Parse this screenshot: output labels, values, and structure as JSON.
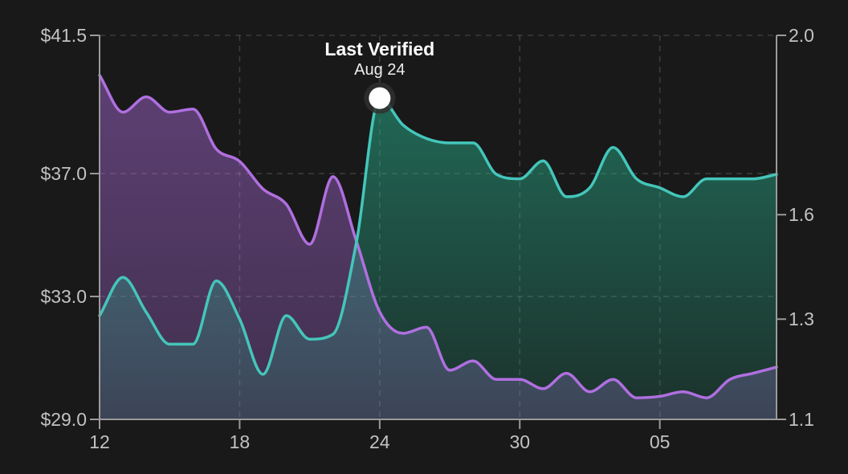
{
  "colors": {
    "background": "#191919",
    "axis": "#9b9b9b",
    "grid": "rgba(255,255,255,0.15)",
    "tick_label": "#c2c2c2",
    "annotation_text": "#ffffff",
    "marker_fill": "#ffffff",
    "marker_ring": "rgba(48,48,48,0.85)"
  },
  "annotation": {
    "title": "Last Verified",
    "subtitle": "Aug 24"
  },
  "chart_data": {
    "type": "area",
    "subtype": "dual-axis-smoothed-area",
    "title": "",
    "grid": "dashed",
    "legend": "none",
    "dates": [
      "Aug 12",
      "Aug 13",
      "Aug 14",
      "Aug 15",
      "Aug 16",
      "Aug 17",
      "Aug 18",
      "Aug 19",
      "Aug 20",
      "Aug 21",
      "Aug 22",
      "Aug 23",
      "Aug 24",
      "Aug 25",
      "Aug 26",
      "Aug 27",
      "Aug 28",
      "Aug 29",
      "Aug 30",
      "Aug 31",
      "Sep 01",
      "Sep 02",
      "Sep 03",
      "Sep 04",
      "Sep 05",
      "Sep 06",
      "Sep 07",
      "Sep 08",
      "Sep 09",
      "Sep 10"
    ],
    "x_ticks": [
      {
        "label": "12",
        "index": 0
      },
      {
        "label": "18",
        "index": 6
      },
      {
        "label": "24",
        "index": 12
      },
      {
        "label": "30",
        "index": 18
      },
      {
        "label": "05",
        "index": 24
      }
    ],
    "left_axis": {
      "unit": "$",
      "range": [
        29.0,
        41.5
      ],
      "scale": "linear",
      "ticks": [
        {
          "label": "$41.5",
          "value": 41.5
        },
        {
          "label": "$37.0",
          "value": 37.0
        },
        {
          "label": "$33.0",
          "value": 33.0
        },
        {
          "label": "$29.0",
          "value": 29.0
        }
      ]
    },
    "right_axis": {
      "unit": "",
      "range": [
        1.1,
        2.0
      ],
      "scale": "piecewise",
      "ticks": [
        {
          "label": "2.0",
          "value": 2.0,
          "pos": 0.0
        },
        {
          "label": "1.6",
          "value": 1.6,
          "pos": 0.467
        },
        {
          "label": "1.3",
          "value": 1.3,
          "pos": 0.739
        },
        {
          "label": "1.1",
          "value": 1.1,
          "pos": 1.0
        }
      ]
    },
    "series": [
      {
        "name": "price-usd",
        "axis": "left",
        "line_color": "#b06fe0",
        "fill_color": "#af6ee0",
        "fill_alpha_top": 0.46,
        "fill_alpha_bottom": 0.26,
        "values": [
          40.2,
          39.0,
          39.5,
          39.0,
          39.1,
          37.8,
          37.4,
          36.5,
          36.0,
          34.7,
          36.9,
          34.8,
          32.5,
          31.8,
          32.0,
          30.6,
          30.9,
          30.3,
          30.3,
          30.0,
          30.5,
          29.9,
          30.3,
          29.7,
          29.75,
          29.9,
          29.7,
          30.3,
          30.5,
          30.7
        ]
      },
      {
        "name": "ratio",
        "axis": "right",
        "line_color": "#44c6ba",
        "fill_color": "#28af8c",
        "fill_alpha_top": 0.55,
        "fill_alpha_bottom": 0.16,
        "values": [
          1.31,
          1.42,
          1.32,
          1.25,
          1.25,
          1.41,
          1.3,
          1.19,
          1.31,
          1.26,
          1.27,
          1.52,
          1.86,
          1.8,
          1.77,
          1.76,
          1.76,
          1.69,
          1.68,
          1.72,
          1.64,
          1.66,
          1.75,
          1.68,
          1.66,
          1.64,
          1.68,
          1.68,
          1.68,
          1.69
        ]
      }
    ],
    "marker": {
      "series": "ratio",
      "index": 12,
      "value": 1.86,
      "date": "Aug 24"
    }
  }
}
